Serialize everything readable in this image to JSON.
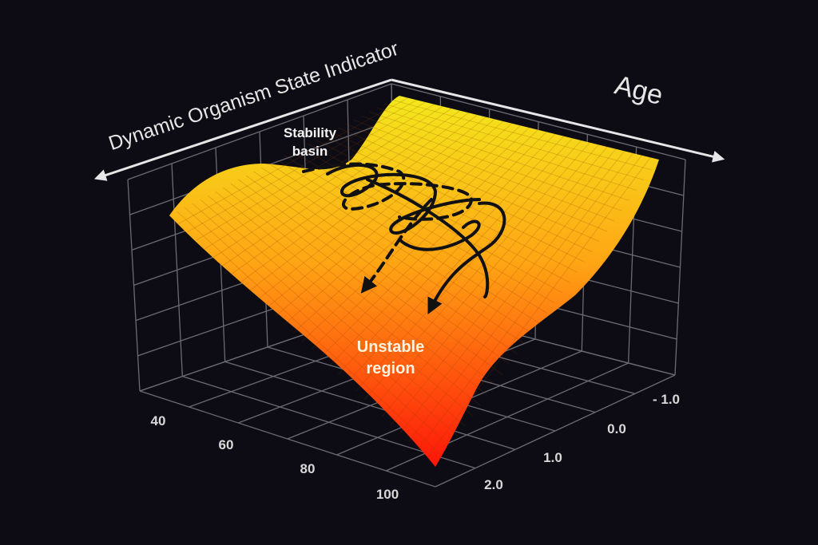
{
  "axes": {
    "left_label": "Dynamic Organism State Indicator",
    "right_label": "Age",
    "age_ticks": [
      "40",
      "60",
      "80",
      "100"
    ],
    "state_ticks": [
      "- 1.0",
      "0.0",
      "1.0",
      "2.0"
    ]
  },
  "annotations": {
    "stability_basin": [
      "Stability",
      "basin"
    ],
    "unstable_region": [
      "Unstable",
      "region"
    ]
  }
}
